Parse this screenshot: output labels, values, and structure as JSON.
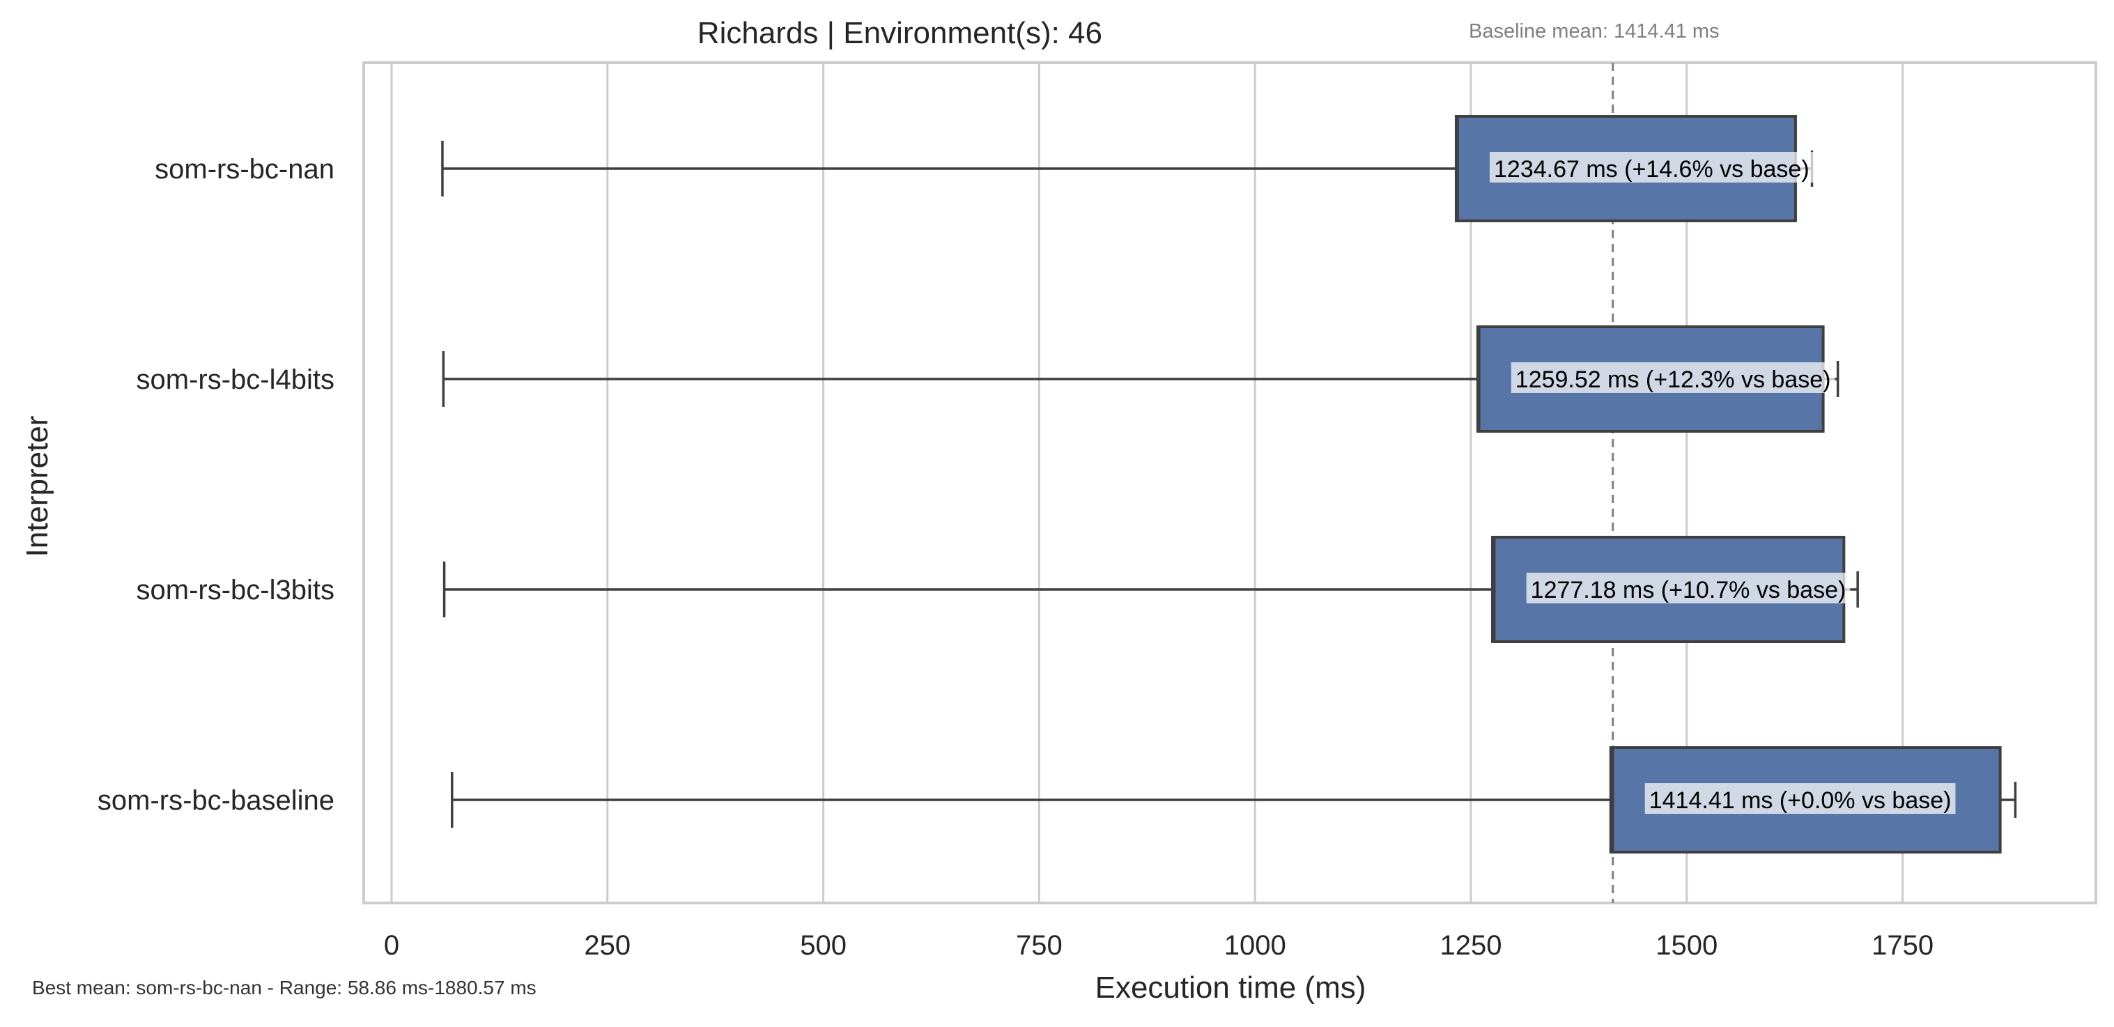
{
  "chart_data": {
    "type": "box",
    "orientation": "horizontal",
    "title": "Richards | Environment(s): 46",
    "baseline_note": "Baseline mean: 1414.41 ms",
    "xlabel": "Execution time (ms)",
    "ylabel": "Interpreter",
    "xlim": [
      -30,
      1970
    ],
    "xticks": [
      0,
      250,
      500,
      750,
      1000,
      1250,
      1500,
      1750
    ],
    "grid": true,
    "baseline_value": 1414.41,
    "box_color": "#5875a7",
    "footer": "Best mean: som-rs-bc-nan - Range: 58.86 ms-1880.57 ms",
    "categories": [
      "som-rs-bc-nan",
      "som-rs-bc-l4bits",
      "som-rs-bc-l3bits",
      "som-rs-bc-baseline"
    ],
    "series": [
      {
        "label": "som-rs-bc-nan",
        "whisker_low": 58.86,
        "q1": 1233,
        "median": 1234.67,
        "q3": 1626,
        "whisker_high": 1645,
        "annotation": "1234.67 ms  (+14.6% vs base)"
      },
      {
        "label": "som-rs-bc-l4bits",
        "whisker_low": 60,
        "q1": 1258,
        "median": 1259.52,
        "q3": 1658,
        "whisker_high": 1675,
        "annotation": "1259.52 ms  (+12.3% vs base)"
      },
      {
        "label": "som-rs-bc-l3bits",
        "whisker_low": 61,
        "q1": 1275,
        "median": 1277.18,
        "q3": 1682,
        "whisker_high": 1698,
        "annotation": "1277.18 ms  (+10.7% vs base)"
      },
      {
        "label": "som-rs-bc-baseline",
        "whisker_low": 70,
        "q1": 1412,
        "median": 1414.41,
        "q3": 1863,
        "whisker_high": 1880.57,
        "annotation": "1414.41 ms  (+0.0% vs base)"
      }
    ]
  }
}
